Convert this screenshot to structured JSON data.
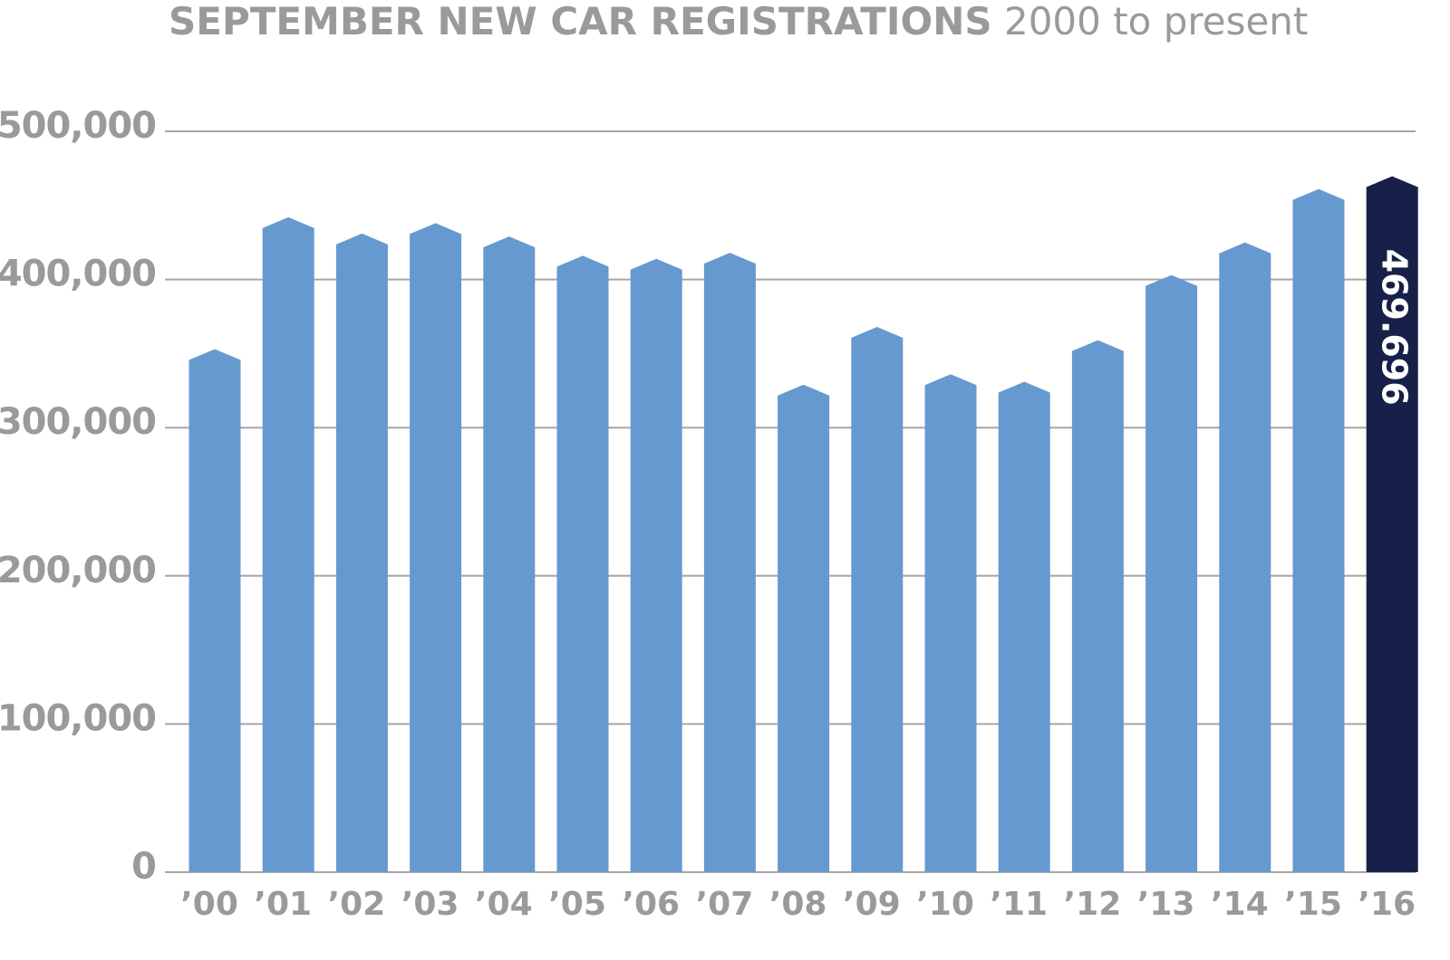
{
  "chart_data": {
    "type": "bar",
    "title": "SEPTEMBER NEW CAR REGISTRATIONS",
    "subtitle": "2000 to present",
    "categories": [
      "’00",
      "’01",
      "’02",
      "’03",
      "’04",
      "’05",
      "’06",
      "’07",
      "’08",
      "’09",
      "’10",
      "’11",
      "’12",
      "’13",
      "’14",
      "’15",
      "’16"
    ],
    "values": [
      353000,
      442000,
      431000,
      438000,
      429000,
      416000,
      414000,
      418000,
      329000,
      368000,
      336000,
      331000,
      359000,
      403000,
      425000,
      461000,
      469696
    ],
    "value_labels": [
      null,
      null,
      null,
      null,
      null,
      null,
      null,
      null,
      null,
      null,
      null,
      null,
      null,
      null,
      null,
      null,
      "469.696"
    ],
    "colors": [
      "#6699cf",
      "#6699cf",
      "#6699cf",
      "#6699cf",
      "#6699cf",
      "#6699cf",
      "#6699cf",
      "#6699cf",
      "#6699cf",
      "#6699cf",
      "#6699cf",
      "#6699cf",
      "#6699cf",
      "#6699cf",
      "#6699cf",
      "#6699cf",
      "#172049"
    ],
    "ylim": [
      0,
      500000
    ],
    "yticks": [
      0,
      {
        "value": 100000,
        "label": "100,000"
      },
      {
        "value": 200000,
        "label": "200,000"
      },
      {
        "value": 300000,
        "label": "300,000"
      },
      {
        "value": 400000,
        "label": "400,000"
      },
      {
        "value": 500000,
        "label": "500,000"
      }
    ],
    "grid": true
  }
}
